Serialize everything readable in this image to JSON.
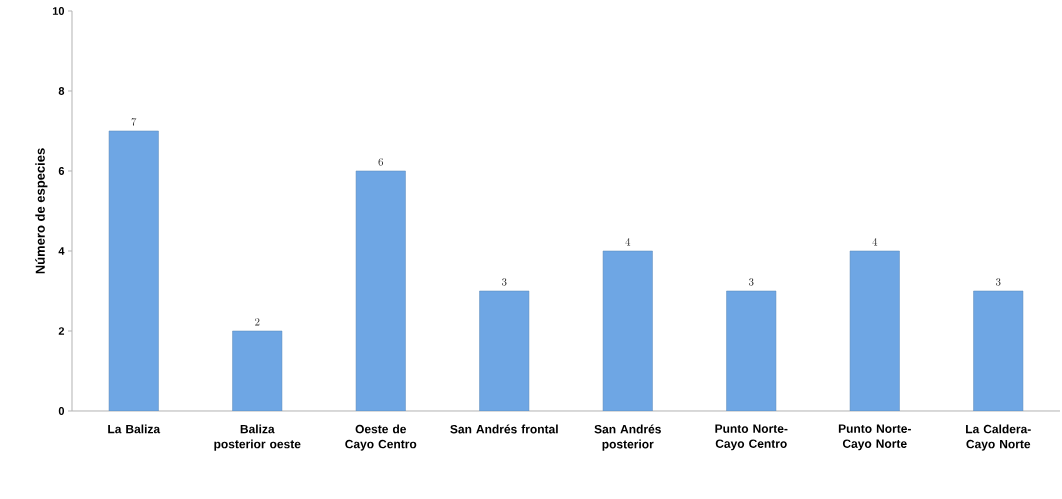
{
  "chart_data": {
    "type": "bar",
    "ylabel": "Número de especies",
    "categories": [
      "La Baliza",
      "Baliza posterior oeste",
      "Oeste de Cayo Centro",
      "San Andrés frontal",
      "San Andrés posterior",
      "Punto Norte-Cayo Centro",
      "Punto Norte-Cayo Norte",
      "La Caldera-Cayo Norte"
    ],
    "values": [
      7,
      2,
      6,
      3,
      4,
      3,
      4,
      3
    ],
    "color": "#6ea6e4",
    "ylim": [
      0,
      10
    ],
    "yticks": [
      0,
      2,
      4,
      6,
      8,
      10
    ],
    "grid": false,
    "data_labels": true
  }
}
